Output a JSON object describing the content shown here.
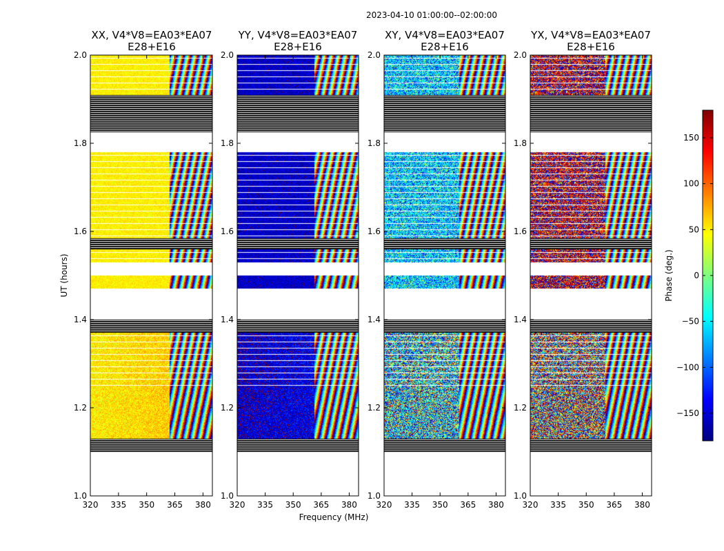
{
  "chart_data": {
    "type": "heatmap",
    "suptitle": "2023-04-10  01:00:00--02:00:00",
    "xlabel": "Frequency (MHz)",
    "ylabel": "UT (hours)",
    "xlim": [
      320,
      385
    ],
    "ylim": [
      1.0,
      2.0
    ],
    "x_ticks": [
      "320",
      "335",
      "350",
      "365",
      "380"
    ],
    "y_ticks": [
      "1.0",
      "1.2",
      "1.4",
      "1.6",
      "1.8",
      "2.0"
    ],
    "colorbar": {
      "label": "Phase (deg.)",
      "range": [
        -180,
        180
      ],
      "ticks": [
        "150",
        "100",
        "50",
        "0",
        "−50",
        "−100",
        "−150"
      ],
      "tick_values": [
        150,
        100,
        50,
        0,
        -50,
        -100,
        -150
      ],
      "colormap": "jet"
    },
    "panels": [
      {
        "title": "XX, V4*V8=EA03*EA07",
        "subtitle": "E28+E16",
        "pol": "XX",
        "base_phase": 50,
        "noise": 12,
        "fringe_start": 362
      },
      {
        "title": "YY, V4*V8=EA03*EA07",
        "subtitle": "E28+E16",
        "pol": "YY",
        "base_phase": -155,
        "noise": 18,
        "fringe_start": 361
      },
      {
        "title": "XY, V4*V8=EA03*EA07",
        "subtitle": "E28+E16",
        "pol": "XY",
        "base_phase": -60,
        "noise": 70,
        "fringe_start": 360
      },
      {
        "title": "YX, V4*V8=EA03*EA07",
        "subtitle": "E28+E16",
        "pol": "YX",
        "base_phase": 160,
        "noise": 90,
        "fringe_start": 360
      }
    ],
    "data_blocks": [
      {
        "t0": 1.1,
        "t1": 1.13,
        "flagged": "striped"
      },
      {
        "t0": 1.13,
        "t1": 1.25,
        "flagged": "none"
      },
      {
        "t0": 1.25,
        "t1": 1.37,
        "flagged": "lines"
      },
      {
        "t0": 1.37,
        "t1": 1.4,
        "flagged": "striped"
      },
      {
        "t0": 1.47,
        "t1": 1.5,
        "flagged": "none"
      },
      {
        "t0": 1.53,
        "t1": 1.56,
        "flagged": "lines"
      },
      {
        "t0": 1.56,
        "t1": 1.585,
        "flagged": "striped"
      },
      {
        "t0": 1.585,
        "t1": 1.78,
        "flagged": "lines"
      },
      {
        "t0": 1.825,
        "t1": 1.91,
        "flagged": "striped"
      },
      {
        "t0": 1.91,
        "t1": 2.0,
        "flagged": "lines"
      }
    ]
  }
}
